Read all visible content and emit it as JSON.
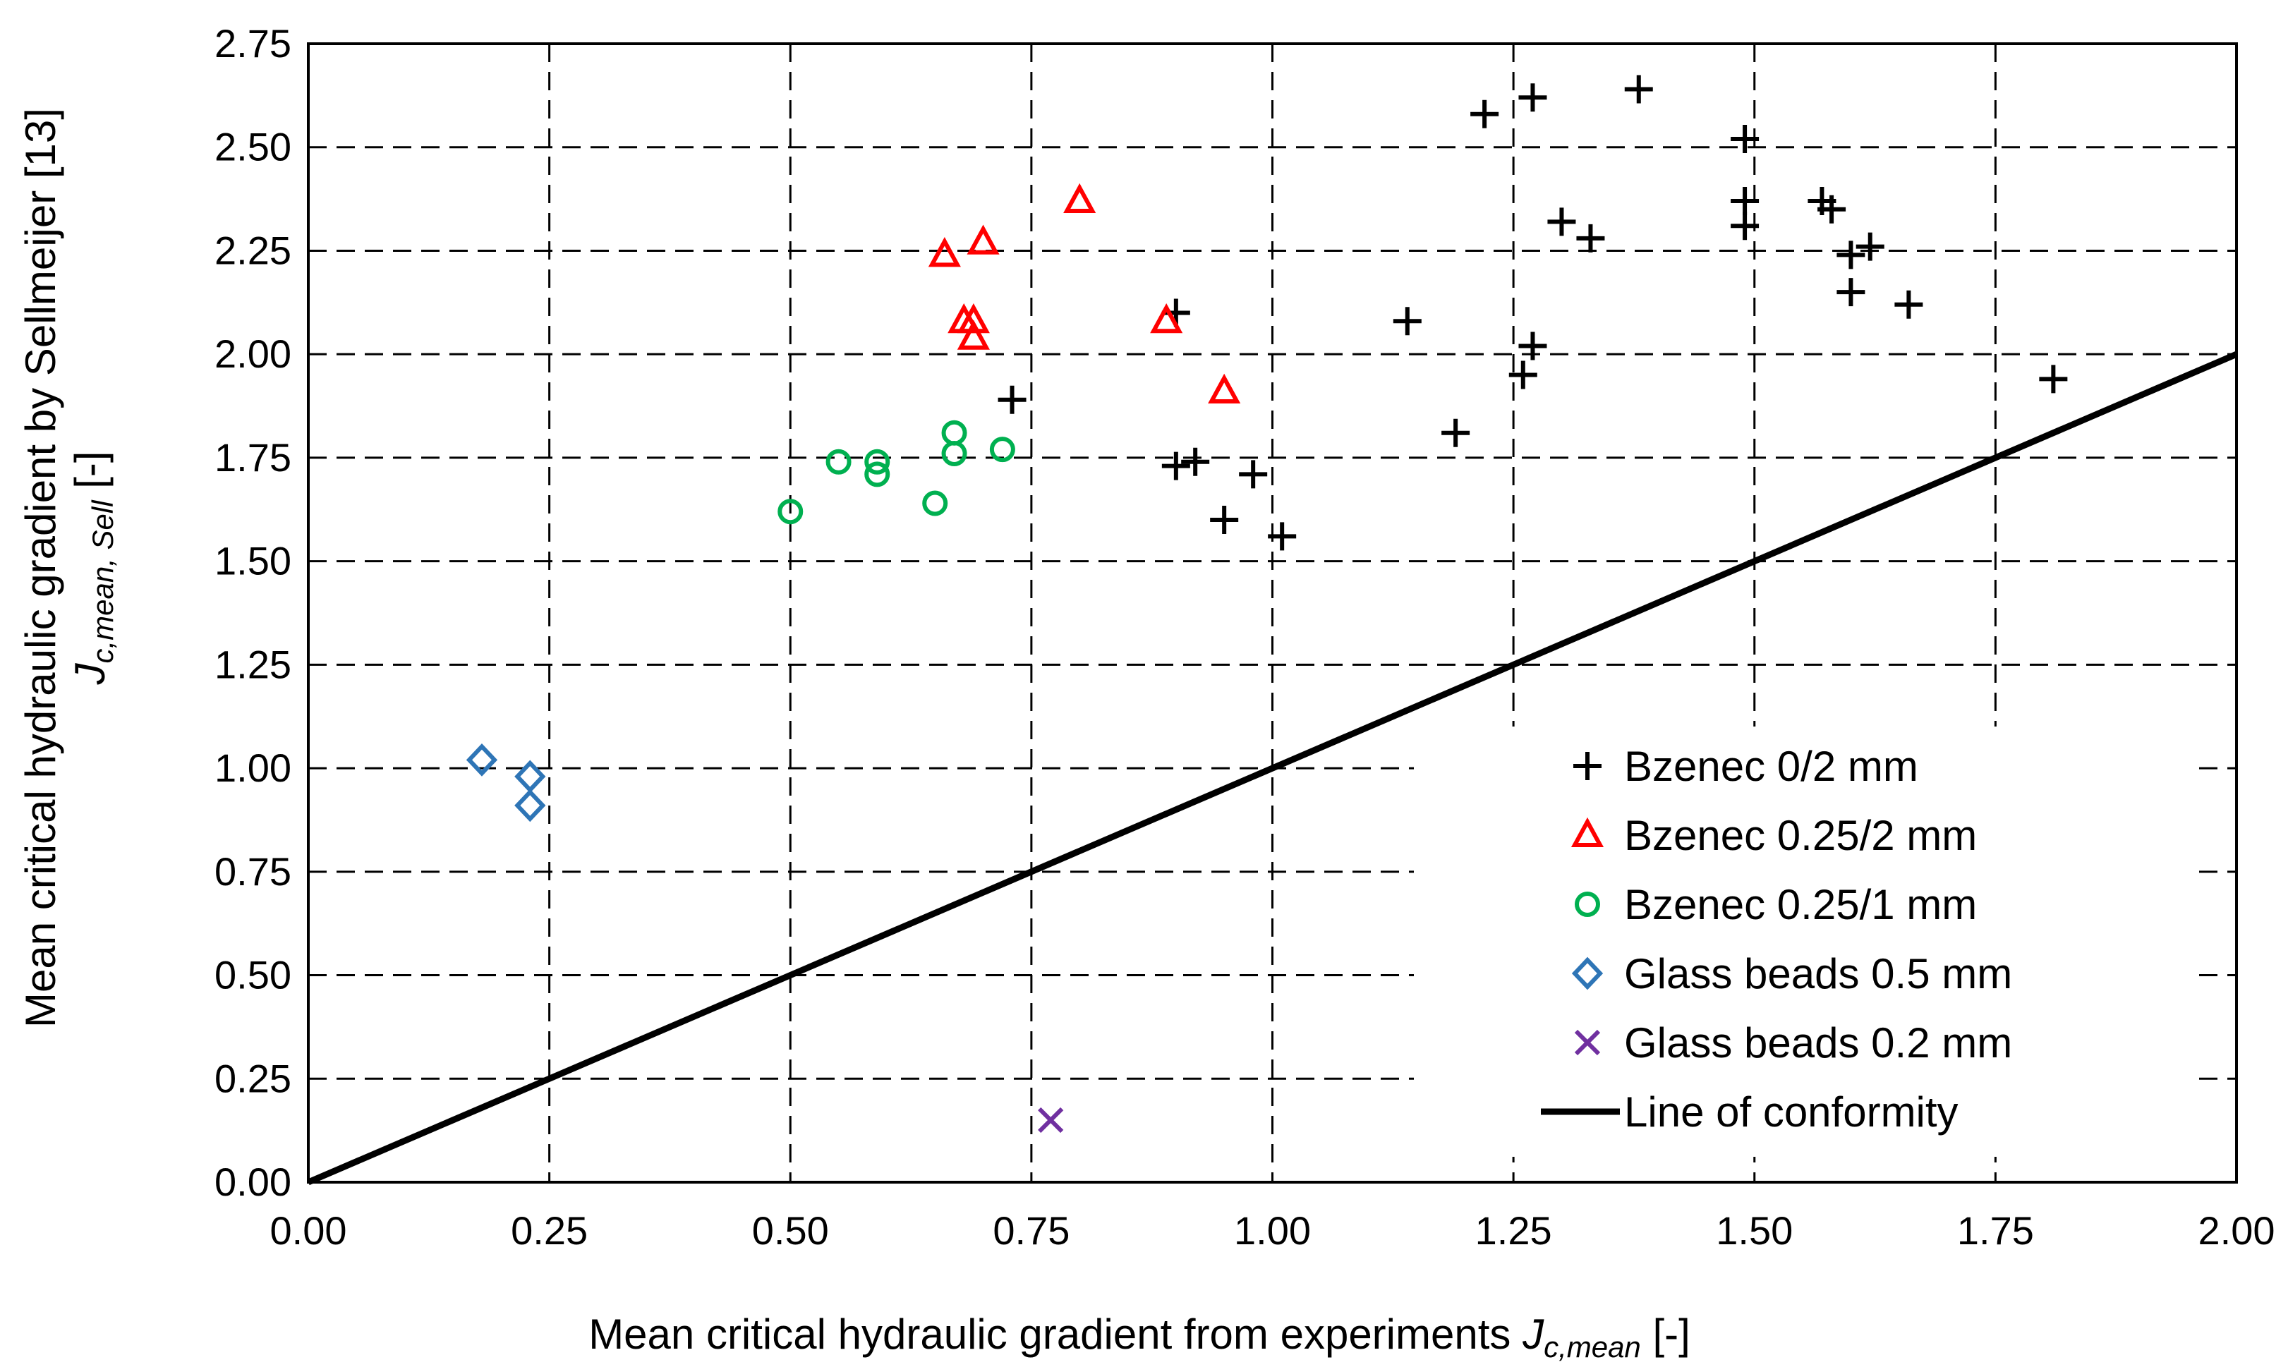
{
  "chart_data": {
    "type": "scatter",
    "title": "",
    "xlabel": {
      "main": "Mean critical hydraulic gradient from experiments ",
      "symbol": "J",
      "subscript": "c,mean",
      "unit": " [-]"
    },
    "ylabel": {
      "main": "Mean critical hydraulic gradient by Sellmeijer [13]",
      "symbol": "J",
      "subscript": "c,mean, Sell",
      "unit": " [-]"
    },
    "xlim": [
      0,
      2
    ],
    "ylim": [
      0,
      2.75
    ],
    "xticks": [
      "0.00",
      "0.25",
      "0.50",
      "0.75",
      "1.00",
      "1.25",
      "1.50",
      "1.75",
      "2.00"
    ],
    "yticks": [
      "0.00",
      "0.25",
      "0.50",
      "0.75",
      "1.00",
      "1.25",
      "1.50",
      "1.75",
      "2.00",
      "2.25",
      "2.50",
      "2.75"
    ],
    "grid": true,
    "legend_position": "bottom-right",
    "series": [
      {
        "name": "Bzenec 0/2 mm",
        "marker": "plus",
        "color": "#000000",
        "points": [
          [
            0.73,
            1.89
          ],
          [
            0.9,
            2.1
          ],
          [
            0.9,
            1.73
          ],
          [
            0.92,
            1.74
          ],
          [
            0.95,
            1.6
          ],
          [
            0.98,
            1.71
          ],
          [
            1.01,
            1.56
          ],
          [
            1.14,
            2.08
          ],
          [
            1.19,
            1.81
          ],
          [
            1.22,
            2.58
          ],
          [
            1.26,
            1.95
          ],
          [
            1.27,
            2.62
          ],
          [
            1.27,
            2.02
          ],
          [
            1.3,
            2.32
          ],
          [
            1.33,
            2.28
          ],
          [
            1.38,
            2.64
          ],
          [
            1.49,
            2.52
          ],
          [
            1.49,
            2.37
          ],
          [
            1.49,
            2.31
          ],
          [
            1.57,
            2.37
          ],
          [
            1.58,
            2.35
          ],
          [
            1.6,
            2.24
          ],
          [
            1.62,
            2.26
          ],
          [
            1.6,
            2.15
          ],
          [
            1.66,
            2.12
          ],
          [
            1.81,
            1.94
          ]
        ]
      },
      {
        "name": "Bzenec 0.25/2 mm",
        "marker": "triangle",
        "color": "#ff0000",
        "points": [
          [
            0.66,
            2.24
          ],
          [
            0.7,
            2.27
          ],
          [
            0.68,
            2.08
          ],
          [
            0.69,
            2.08
          ],
          [
            0.69,
            2.04
          ],
          [
            0.8,
            2.37
          ],
          [
            0.89,
            2.08
          ],
          [
            0.95,
            1.91
          ]
        ]
      },
      {
        "name": "Bzenec 0.25/1 mm",
        "marker": "circle",
        "color": "#00b050",
        "points": [
          [
            0.5,
            1.62
          ],
          [
            0.55,
            1.74
          ],
          [
            0.59,
            1.71
          ],
          [
            0.59,
            1.74
          ],
          [
            0.65,
            1.64
          ],
          [
            0.67,
            1.81
          ],
          [
            0.67,
            1.76
          ],
          [
            0.72,
            1.77
          ]
        ]
      },
      {
        "name": "Glass beads 0.5 mm",
        "marker": "diamond",
        "color": "#2e75b6",
        "points": [
          [
            0.18,
            1.02
          ],
          [
            0.23,
            0.98
          ],
          [
            0.23,
            0.91
          ]
        ]
      },
      {
        "name": "Glass beads 0.2 mm",
        "marker": "x",
        "color": "#7030a0",
        "points": [
          [
            0.77,
            0.15
          ]
        ]
      },
      {
        "name": "Line of conformity",
        "marker": "line",
        "color": "#000000",
        "points": [
          [
            0,
            0
          ],
          [
            2,
            2
          ]
        ]
      }
    ]
  }
}
